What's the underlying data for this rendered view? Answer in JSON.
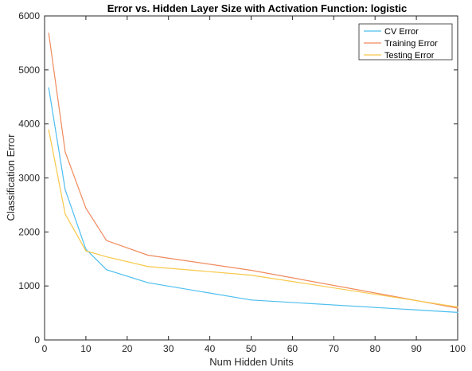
{
  "chart_data": {
    "type": "line",
    "title": "Error vs. Hidden Layer Size with Activation Function: logistic",
    "xlabel": "Num Hidden Units",
    "ylabel": "Classification Error",
    "xlim": [
      0,
      100
    ],
    "ylim": [
      0,
      6000
    ],
    "xticks": [
      0,
      10,
      20,
      30,
      40,
      50,
      60,
      70,
      80,
      90,
      100
    ],
    "yticks": [
      0,
      1000,
      2000,
      3000,
      4000,
      5000,
      6000
    ],
    "grid": false,
    "legend_position": "top-right",
    "x": [
      1,
      5,
      10,
      15,
      25,
      50,
      100
    ],
    "series": [
      {
        "name": "CV Error",
        "color": "#4DBEEE",
        "values": [
          4670,
          2780,
          1680,
          1300,
          1060,
          740,
          510
        ]
      },
      {
        "name": "Training Error",
        "color": "#F08A5D",
        "values": [
          5680,
          3480,
          2440,
          1840,
          1570,
          1290,
          590
        ]
      },
      {
        "name": "Testing Error",
        "color": "#F7C84A",
        "values": [
          3890,
          2330,
          1650,
          1540,
          1360,
          1200,
          610
        ]
      }
    ]
  }
}
